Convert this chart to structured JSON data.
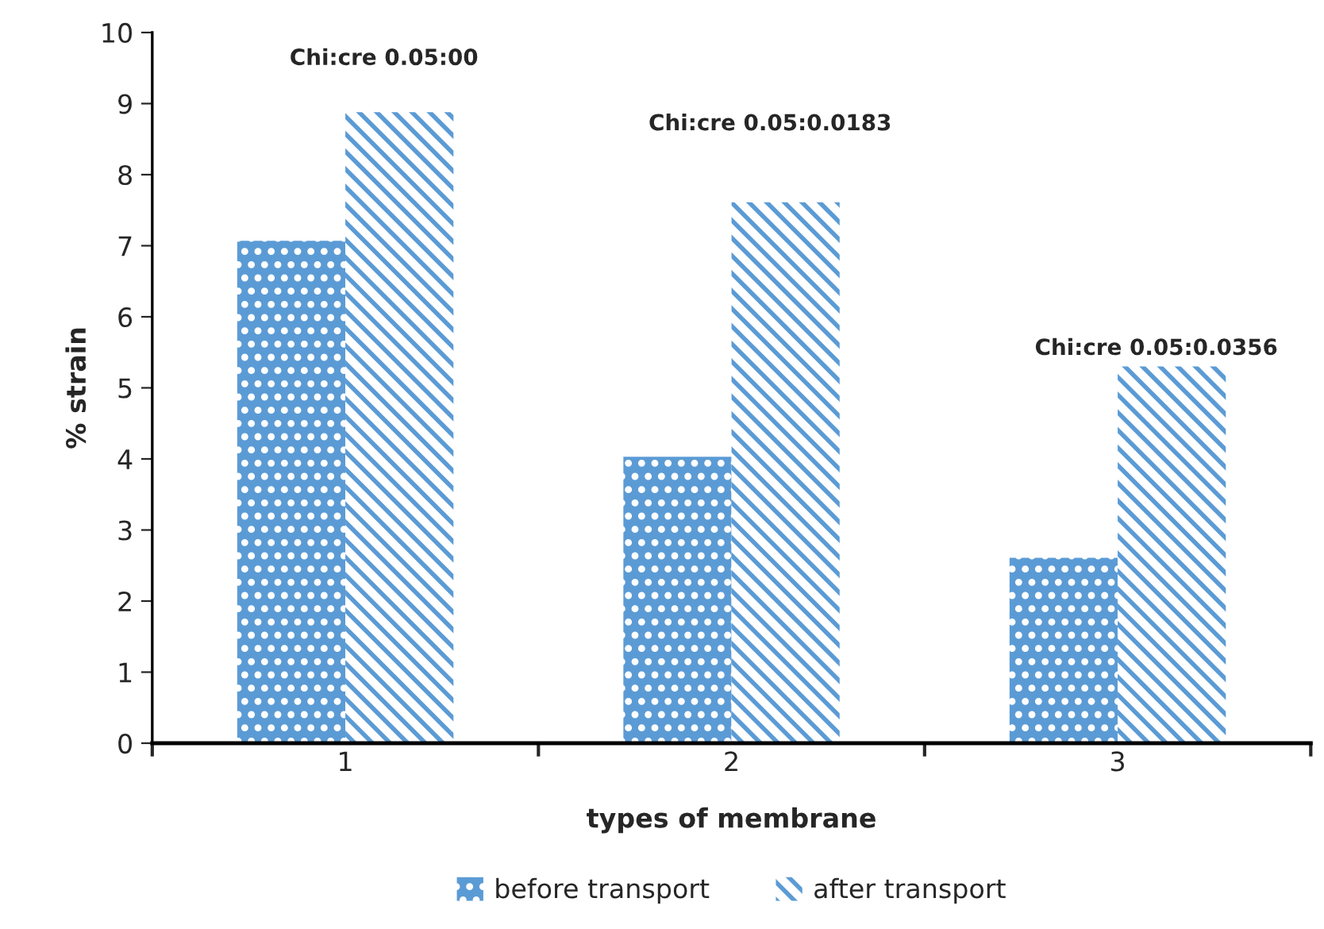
{
  "chart_data": {
    "type": "bar",
    "categories": [
      "1",
      "2",
      "3"
    ],
    "series": [
      {
        "name": "before transport",
        "color": "#5b9bd5",
        "values": [
          7.07,
          4.03,
          2.61
        ]
      },
      {
        "name": "after transport",
        "color": "#5b9bd5",
        "values": [
          8.88,
          7.61,
          5.3
        ]
      }
    ],
    "xlabel": "types of membrane",
    "ylabel": "% strain",
    "ylim": [
      0,
      10
    ],
    "yticks": [
      0,
      1,
      2,
      3,
      4,
      5,
      6,
      7,
      8,
      9,
      10
    ],
    "grid": false,
    "legend": "bottom",
    "annotations": [
      "Chi:cre 0.05:00",
      "Chi:cre 0.05:0.0183",
      "Chi:cre 0.05:0.0356"
    ]
  }
}
